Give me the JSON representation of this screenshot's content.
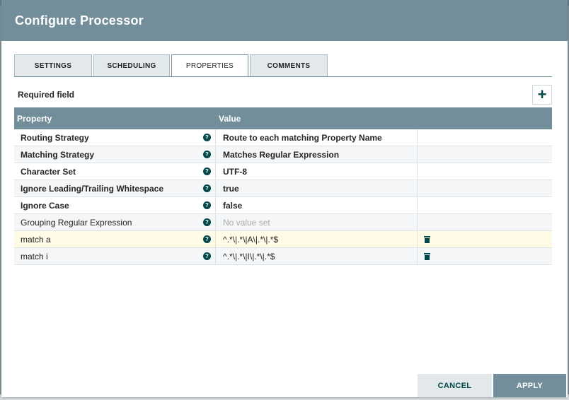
{
  "dialog": {
    "title": "Configure Processor"
  },
  "tabs": [
    {
      "label": "SETTINGS"
    },
    {
      "label": "SCHEDULING"
    },
    {
      "label": "PROPERTIES"
    },
    {
      "label": "COMMENTS"
    }
  ],
  "active_tab": "PROPERTIES",
  "required_label": "Required field",
  "table": {
    "headers": {
      "property": "Property",
      "value": "Value"
    },
    "rows": [
      {
        "property": "Routing Strategy",
        "value": "Route to each matching Property Name",
        "required": true
      },
      {
        "property": "Matching Strategy",
        "value": "Matches Regular Expression",
        "required": true
      },
      {
        "property": "Character Set",
        "value": "UTF-8",
        "required": true
      },
      {
        "property": "Ignore Leading/Trailing Whitespace",
        "value": "true",
        "required": true
      },
      {
        "property": "Ignore Case",
        "value": "false",
        "required": true
      },
      {
        "property": "Grouping Regular Expression",
        "value": "No value set",
        "required": false
      },
      {
        "property": "match a",
        "value": "^.*\\|.*\\|A\\|.*\\|.*$",
        "required": false,
        "deletable": true
      },
      {
        "property": "match i",
        "value": "^.*\\|.*\\|I\\|.*\\|.*$",
        "required": false,
        "deletable": true
      }
    ]
  },
  "footer": {
    "cancel_label": "CANCEL",
    "apply_label": "APPLY"
  },
  "icons": {
    "help": "help-icon",
    "add": "plus-icon",
    "delete": "trash-icon"
  },
  "colors": {
    "header": "#728e9b",
    "accent": "#004849",
    "highlight_row": "#fffbe6"
  }
}
